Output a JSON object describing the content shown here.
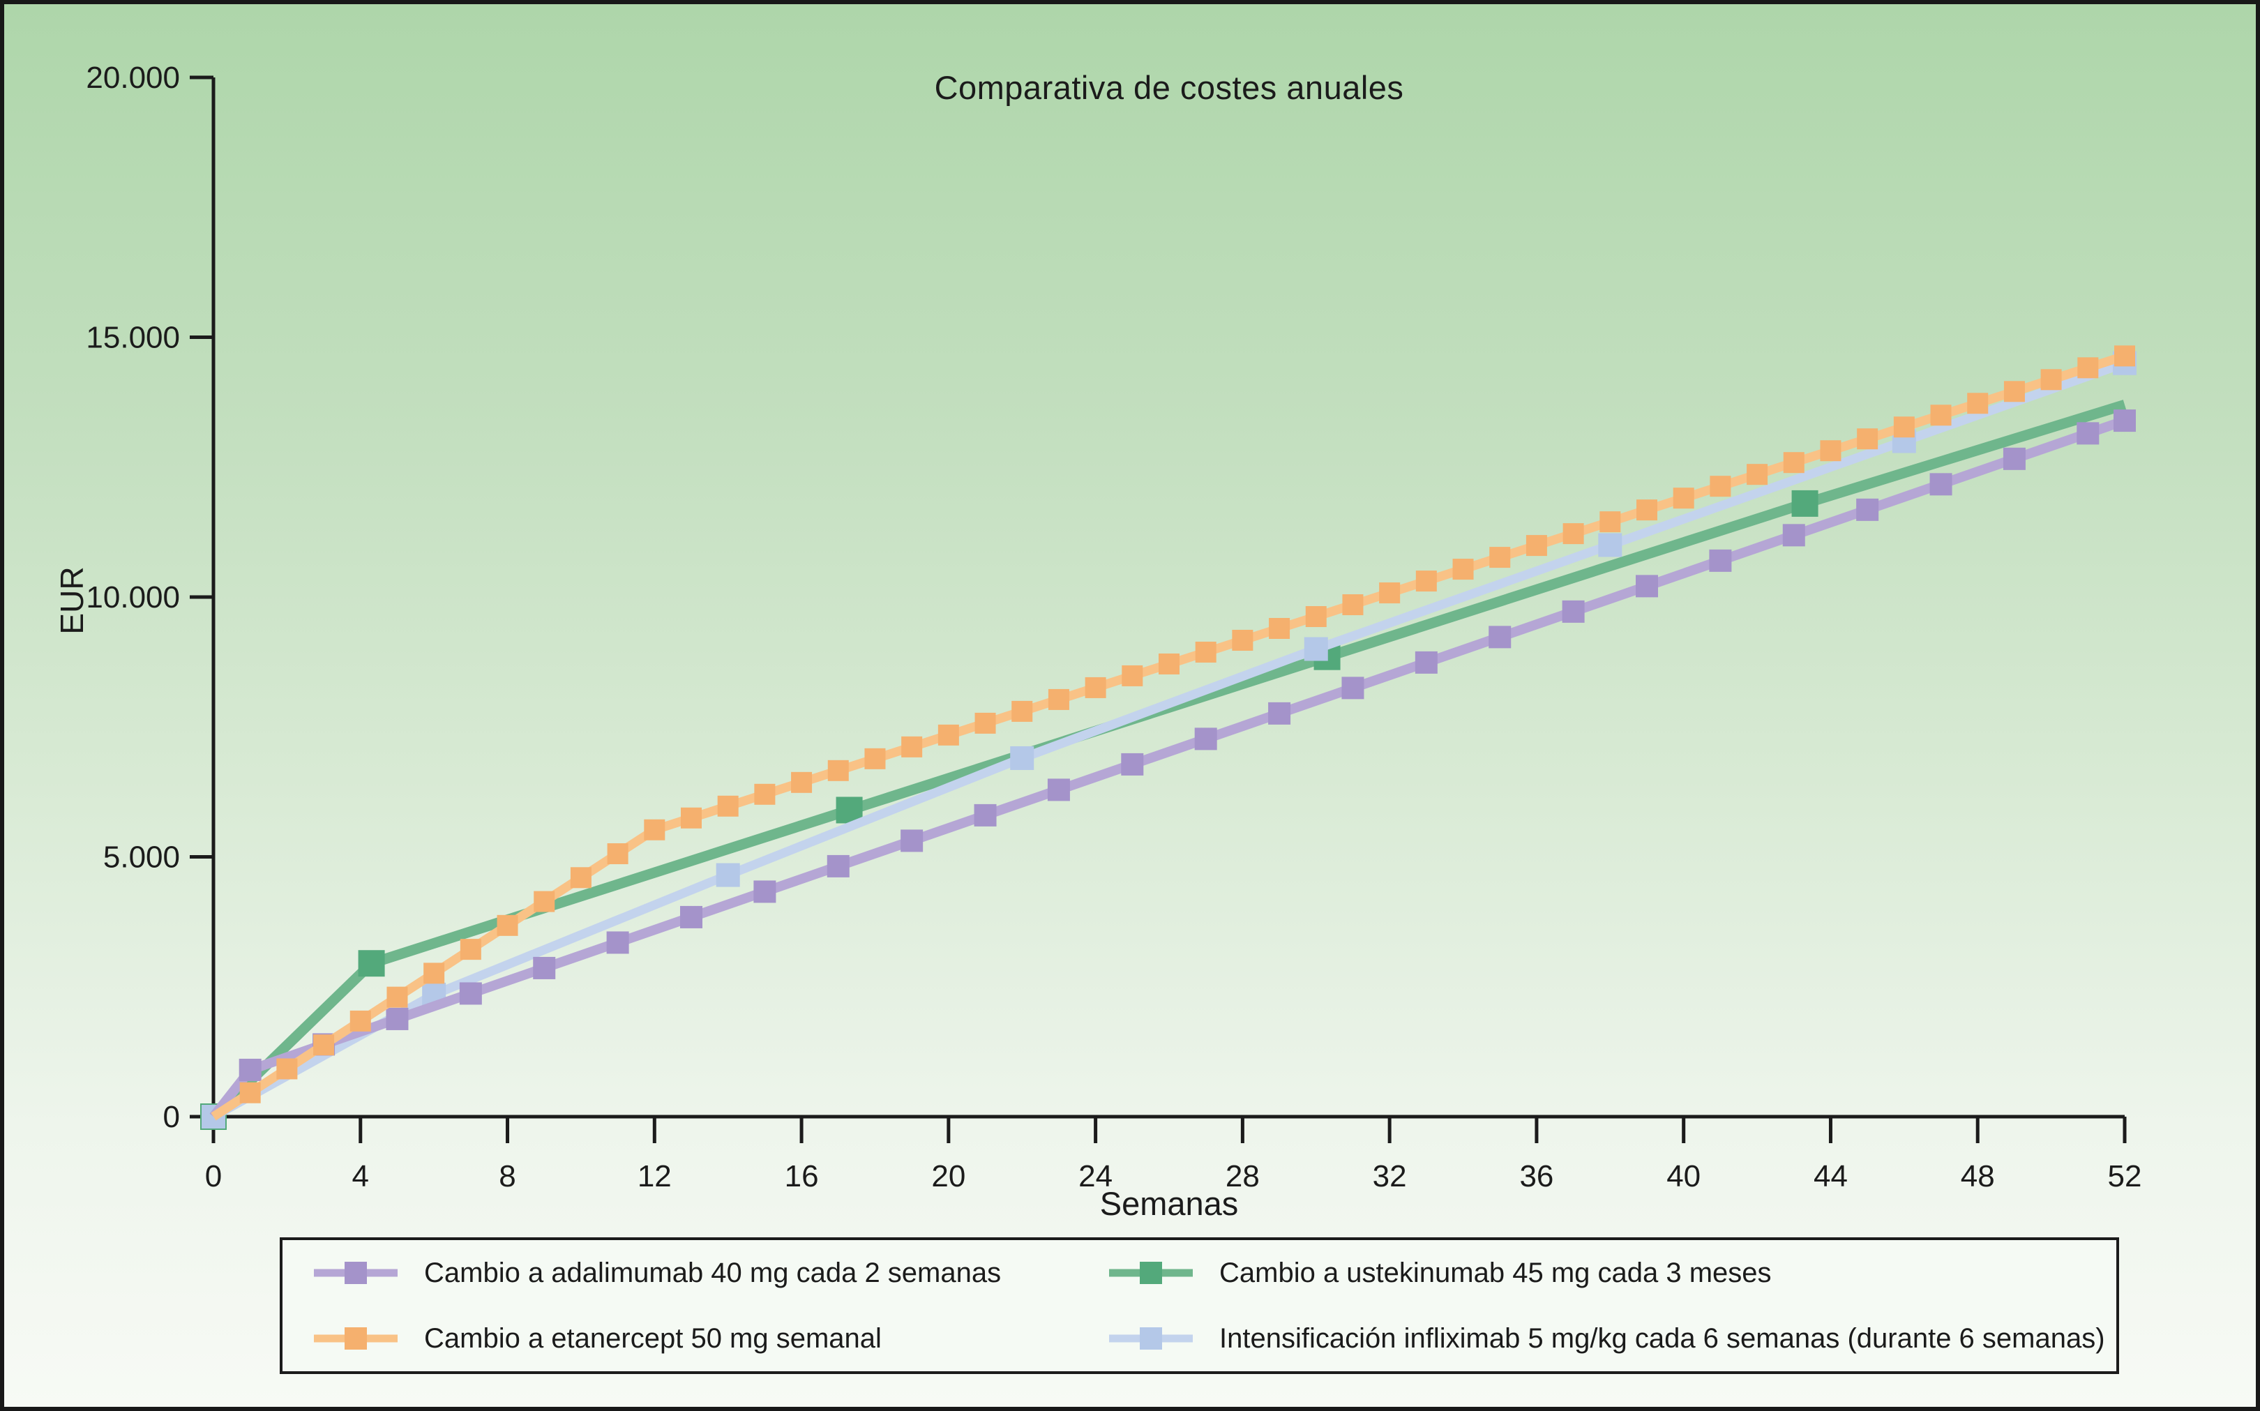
{
  "figure": {
    "title": "Comparativa de costes anuales",
    "xlabel": "Semanas",
    "ylabel": "EUR"
  },
  "colors": {
    "ink": "#1b1b1b",
    "background_top": "#aed6aa",
    "background_bottom": "#f7faf5",
    "legend_background": "#f5faf4"
  },
  "legend": {
    "position": "bottom",
    "order": [
      "adalimumab",
      "ustekinumab",
      "etanercept",
      "infliximab"
    ]
  },
  "chart_data": {
    "type": "line",
    "title": "Comparativa de costes anuales",
    "xlabel": "Semanas",
    "ylabel": "EUR",
    "xlim": [
      0,
      52
    ],
    "ylim": [
      0,
      20000
    ],
    "grid": false,
    "legend_position": "bottom",
    "x_ticks": [
      0,
      4,
      8,
      12,
      16,
      20,
      24,
      28,
      32,
      36,
      40,
      44,
      48,
      52
    ],
    "y_ticks": [
      {
        "value": 0,
        "label": "0"
      },
      {
        "value": 5000,
        "label": "5.000"
      },
      {
        "value": 10000,
        "label": "10.000"
      },
      {
        "value": 15000,
        "label": "15.000"
      },
      {
        "value": 20000,
        "label": "20.000"
      }
    ],
    "series": [
      {
        "id": "ustekinumab",
        "label": "Cambio a ustekinumab 45 mg cada 3 meses",
        "line_color": "#6fb68c",
        "marker_color": "#53a97b",
        "line_width": 15,
        "marker_size": 38,
        "markers": "skip-last",
        "points": [
          [
            0,
            0
          ],
          [
            4.3,
            2950
          ],
          [
            17.3,
            5900
          ],
          [
            30.3,
            8850
          ],
          [
            43.3,
            11800
          ],
          [
            52,
            13700
          ]
        ]
      },
      {
        "id": "infliximab",
        "label": "Intensificación infliximab 5 mg/kg cada 6 semanas (durante 6 semanas)",
        "line_color": "#c3d3ed",
        "marker_color": "#b4c8e8",
        "line_width": 13,
        "marker_size": 34,
        "markers": "all",
        "points": [
          [
            0,
            0
          ],
          [
            6,
            2350
          ],
          [
            14,
            4650
          ],
          [
            22,
            6900
          ],
          [
            30,
            9000
          ],
          [
            38,
            11000
          ],
          [
            46,
            13000
          ],
          [
            52,
            14500
          ]
        ]
      },
      {
        "id": "adalimumab",
        "label": "Cambio a adalimumab 40 mg cada 2 semanas",
        "line_color": "#b5a6d5",
        "marker_color": "#a493ca",
        "line_width": 14,
        "marker_size": 32,
        "markers": "skip-first",
        "points": [
          [
            0,
            0
          ],
          [
            1,
            900
          ],
          [
            3,
            1390
          ],
          [
            5,
            1880
          ],
          [
            7,
            2370
          ],
          [
            9,
            2860
          ],
          [
            11,
            3350
          ],
          [
            13,
            3840
          ],
          [
            15,
            4330
          ],
          [
            17,
            4820
          ],
          [
            19,
            5310
          ],
          [
            21,
            5800
          ],
          [
            23,
            6290
          ],
          [
            25,
            6780
          ],
          [
            27,
            7270
          ],
          [
            29,
            7760
          ],
          [
            31,
            8250
          ],
          [
            33,
            8740
          ],
          [
            35,
            9230
          ],
          [
            37,
            9720
          ],
          [
            39,
            10210
          ],
          [
            41,
            10700
          ],
          [
            43,
            11190
          ],
          [
            45,
            11680
          ],
          [
            47,
            12170
          ],
          [
            49,
            12660
          ],
          [
            51,
            13150
          ],
          [
            52,
            13395
          ]
        ]
      },
      {
        "id": "etanercept",
        "label": "Cambio a etanercept 50 mg semanal",
        "line_color": "#f9c286",
        "marker_color": "#f5b06e",
        "line_width": 13,
        "marker_size": 30,
        "markers": "skip-first",
        "points": [
          [
            0,
            0
          ],
          [
            1,
            460
          ],
          [
            2,
            920
          ],
          [
            3,
            1380
          ],
          [
            4,
            1840
          ],
          [
            5,
            2300
          ],
          [
            6,
            2760
          ],
          [
            7,
            3220
          ],
          [
            8,
            3680
          ],
          [
            9,
            4140
          ],
          [
            10,
            4600
          ],
          [
            11,
            5060
          ],
          [
            12,
            5520
          ],
          [
            13,
            5748
          ],
          [
            14,
            5976
          ],
          [
            15,
            6204
          ],
          [
            16,
            6432
          ],
          [
            17,
            6660
          ],
          [
            18,
            6888
          ],
          [
            19,
            7116
          ],
          [
            20,
            7344
          ],
          [
            21,
            7572
          ],
          [
            22,
            7800
          ],
          [
            23,
            8028
          ],
          [
            24,
            8256
          ],
          [
            25,
            8484
          ],
          [
            26,
            8712
          ],
          [
            27,
            8940
          ],
          [
            28,
            9168
          ],
          [
            29,
            9396
          ],
          [
            30,
            9624
          ],
          [
            31,
            9852
          ],
          [
            32,
            10080
          ],
          [
            33,
            10308
          ],
          [
            34,
            10536
          ],
          [
            35,
            10764
          ],
          [
            36,
            10992
          ],
          [
            37,
            11220
          ],
          [
            38,
            11448
          ],
          [
            39,
            11676
          ],
          [
            40,
            11904
          ],
          [
            41,
            12132
          ],
          [
            42,
            12360
          ],
          [
            43,
            12588
          ],
          [
            44,
            12816
          ],
          [
            45,
            13044
          ],
          [
            46,
            13272
          ],
          [
            47,
            13500
          ],
          [
            48,
            13728
          ],
          [
            49,
            13956
          ],
          [
            50,
            14184
          ],
          [
            51,
            14412
          ],
          [
            52,
            14640
          ]
        ]
      }
    ]
  }
}
